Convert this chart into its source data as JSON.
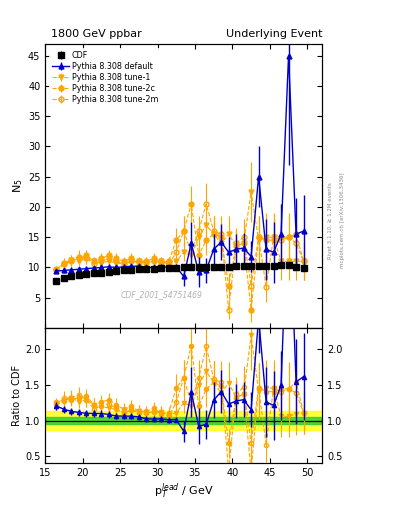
{
  "title_left": "1800 GeV ppbar",
  "title_right": "Underlying Event",
  "xlabel": "p$_T^{lead}$ / GeV",
  "ylabel_main": "N$_5$",
  "ylabel_ratio": "Ratio to CDF",
  "right_label1": "Rivet 3.1.10, ≥ 1.2M events",
  "right_label2": "mcplots.cern.ch [arXiv:1306.3436]",
  "watermark": "CDF_2001_S4751469",
  "xlim": [
    15,
    52
  ],
  "ylim_main": [
    0,
    47
  ],
  "ylim_ratio": [
    0.4,
    2.3
  ],
  "yticks_main": [
    5,
    10,
    15,
    20,
    25,
    30,
    35,
    40,
    45
  ],
  "yticks_ratio": [
    0.5,
    1.0,
    1.5,
    2.0
  ],
  "cdf_x": [
    16.5,
    17.5,
    18.5,
    19.5,
    20.5,
    21.5,
    22.5,
    23.5,
    24.5,
    25.5,
    26.5,
    27.5,
    28.5,
    29.5,
    30.5,
    31.5,
    32.5,
    33.5,
    34.5,
    35.5,
    36.5,
    37.5,
    38.5,
    39.5,
    40.5,
    41.5,
    42.5,
    43.5,
    44.5,
    45.5,
    46.5,
    47.5,
    48.5,
    49.5
  ],
  "cdf_y": [
    7.8,
    8.2,
    8.5,
    8.7,
    8.9,
    9.0,
    9.1,
    9.3,
    9.4,
    9.5,
    9.6,
    9.7,
    9.75,
    9.8,
    9.85,
    9.9,
    9.95,
    10.0,
    10.0,
    10.0,
    10.05,
    10.1,
    10.1,
    10.15,
    10.2,
    10.2,
    10.25,
    10.25,
    10.3,
    10.3,
    10.35,
    10.4,
    10.05,
    9.9
  ],
  "cdf_yerr": [
    0.3,
    0.3,
    0.3,
    0.3,
    0.3,
    0.3,
    0.3,
    0.3,
    0.3,
    0.3,
    0.3,
    0.3,
    0.3,
    0.3,
    0.3,
    0.3,
    0.3,
    0.3,
    0.3,
    0.3,
    0.3,
    0.3,
    0.3,
    0.3,
    0.3,
    0.3,
    0.3,
    0.3,
    0.3,
    0.3,
    0.3,
    0.3,
    0.3,
    0.3
  ],
  "pd_x": [
    16.5,
    17.5,
    18.5,
    19.5,
    20.5,
    21.5,
    22.5,
    23.5,
    24.5,
    25.5,
    26.5,
    27.5,
    28.5,
    29.5,
    30.5,
    31.5,
    32.5,
    33.5,
    34.5,
    35.5,
    36.5,
    37.5,
    38.5,
    39.5,
    40.5,
    41.5,
    42.5,
    43.5,
    44.5,
    45.5,
    46.5,
    47.5,
    48.5,
    49.5
  ],
  "pd_y": [
    9.4,
    9.5,
    9.6,
    9.7,
    9.8,
    9.9,
    10.0,
    10.1,
    10.0,
    10.1,
    10.2,
    10.2,
    10.0,
    10.0,
    10.1,
    10.0,
    10.1,
    8.5,
    14.0,
    9.2,
    9.5,
    13.0,
    14.2,
    12.5,
    13.0,
    13.2,
    11.8,
    25.0,
    13.0,
    12.5,
    15.5,
    45.0,
    15.5,
    16.0
  ],
  "pd_yerr": [
    0.4,
    0.4,
    0.4,
    0.4,
    0.4,
    0.4,
    0.4,
    0.4,
    0.4,
    0.4,
    0.4,
    0.4,
    0.4,
    0.4,
    0.4,
    0.4,
    0.4,
    1.5,
    3.5,
    2.5,
    2.0,
    2.5,
    3.0,
    2.5,
    2.5,
    2.5,
    2.5,
    5.0,
    5.0,
    5.0,
    5.0,
    18.0,
    6.0,
    6.0
  ],
  "t1_x": [
    16.5,
    17.5,
    18.5,
    19.5,
    20.5,
    21.5,
    22.5,
    23.5,
    24.5,
    25.5,
    26.5,
    27.5,
    28.5,
    29.5,
    30.5,
    31.5,
    32.5,
    33.5,
    34.5,
    35.5,
    36.5,
    37.5,
    38.5,
    39.5,
    40.5,
    41.5,
    42.5,
    43.5,
    44.5,
    45.5,
    46.5,
    47.5,
    48.5,
    49.5
  ],
  "t1_y": [
    9.5,
    10.5,
    11.2,
    11.0,
    11.5,
    11.0,
    10.8,
    11.0,
    10.8,
    10.5,
    11.0,
    11.0,
    10.8,
    11.0,
    11.0,
    10.8,
    11.0,
    12.5,
    12.0,
    15.0,
    17.0,
    15.5,
    14.0,
    15.5,
    13.5,
    14.0,
    22.5,
    14.5,
    15.0,
    15.0,
    11.0,
    11.0,
    11.0,
    11.0
  ],
  "t1_yerr": [
    0.5,
    0.7,
    0.8,
    0.8,
    0.9,
    0.8,
    0.8,
    0.8,
    0.8,
    0.7,
    0.8,
    0.8,
    0.8,
    0.8,
    0.8,
    0.8,
    0.8,
    1.5,
    1.5,
    2.5,
    3.0,
    3.0,
    2.5,
    3.0,
    2.5,
    3.0,
    5.0,
    4.0,
    4.0,
    4.0,
    3.0,
    3.0,
    3.0,
    3.0
  ],
  "t2c_x": [
    16.5,
    17.5,
    18.5,
    19.5,
    20.5,
    21.5,
    22.5,
    23.5,
    24.5,
    25.5,
    26.5,
    27.5,
    28.5,
    29.5,
    30.5,
    31.5,
    32.5,
    33.5,
    34.5,
    35.5,
    36.5,
    37.5,
    38.5,
    39.5,
    40.5,
    41.5,
    42.5,
    43.5,
    44.5,
    45.5,
    46.5,
    47.5,
    48.5,
    49.5
  ],
  "t2c_y": [
    9.8,
    10.5,
    11.0,
    11.5,
    12.0,
    11.0,
    11.5,
    12.0,
    11.5,
    11.0,
    11.5,
    11.0,
    11.0,
    11.5,
    10.8,
    11.0,
    14.5,
    16.0,
    20.5,
    12.0,
    14.5,
    15.5,
    15.0,
    7.0,
    13.5,
    14.0,
    3.0,
    15.0,
    14.5,
    14.5,
    15.0,
    15.0,
    15.5,
    11.0
  ],
  "t2c_yerr": [
    0.5,
    0.7,
    0.8,
    0.9,
    0.9,
    0.8,
    0.9,
    0.9,
    0.9,
    0.8,
    0.9,
    0.8,
    0.8,
    0.9,
    0.8,
    0.8,
    2.0,
    2.5,
    3.0,
    2.0,
    2.5,
    3.0,
    2.5,
    2.0,
    2.5,
    3.0,
    2.0,
    3.5,
    3.5,
    3.5,
    4.0,
    4.0,
    4.0,
    3.0
  ],
  "t2m_x": [
    16.5,
    17.5,
    18.5,
    19.5,
    20.5,
    21.5,
    22.5,
    23.5,
    24.5,
    25.5,
    26.5,
    27.5,
    28.5,
    29.5,
    30.5,
    31.5,
    32.5,
    33.5,
    34.5,
    35.5,
    36.5,
    37.5,
    38.5,
    39.5,
    40.5,
    41.5,
    42.5,
    43.5,
    44.5,
    45.5,
    46.5,
    47.5,
    48.5,
    49.5
  ],
  "t2m_y": [
    9.5,
    10.8,
    11.2,
    11.8,
    11.5,
    10.5,
    11.0,
    11.5,
    11.0,
    10.5,
    11.0,
    10.8,
    10.8,
    11.0,
    11.0,
    10.5,
    12.5,
    16.0,
    12.5,
    16.0,
    20.5,
    16.0,
    15.5,
    3.0,
    14.0,
    15.0,
    7.0,
    15.0,
    6.8,
    15.0,
    14.5,
    15.0,
    14.0,
    11.0
  ],
  "t2m_yerr": [
    0.5,
    0.8,
    0.9,
    1.0,
    0.9,
    0.8,
    0.8,
    0.9,
    0.8,
    0.7,
    0.8,
    0.8,
    0.8,
    0.8,
    0.8,
    0.7,
    1.5,
    2.5,
    2.0,
    2.5,
    3.5,
    2.5,
    3.0,
    1.5,
    2.5,
    3.0,
    2.5,
    3.5,
    2.5,
    3.5,
    3.5,
    3.5,
    3.5,
    3.0
  ],
  "color_cdf": "#000000",
  "color_blue": "#0000cc",
  "color_orange": "#ffa500",
  "bg_color": "#ffffff",
  "green_band": 0.05,
  "yellow_band": 0.13
}
